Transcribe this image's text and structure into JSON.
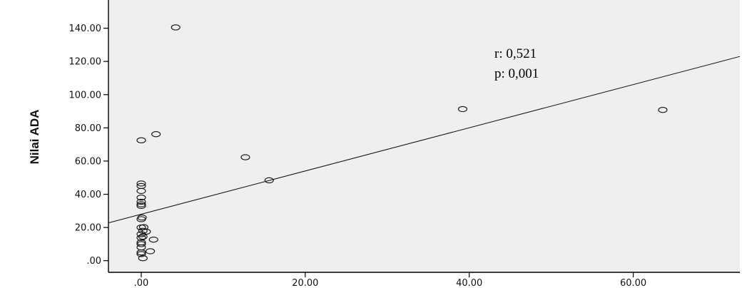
{
  "chart_data": {
    "type": "scatter",
    "title": "",
    "xlabel": "",
    "ylabel": "Nilai ADA",
    "xlim": [
      -4,
      73
    ],
    "ylim": [
      -7,
      157
    ],
    "x_ticks": [
      0,
      20,
      40,
      60
    ],
    "x_tick_labels": [
      ".00",
      "20.00",
      "40.00",
      "60.00"
    ],
    "y_ticks": [
      0,
      20,
      40,
      60,
      80,
      100,
      120,
      140
    ],
    "y_tick_labels": [
      ".00",
      "20.00",
      "40.00",
      "60.00",
      "80.00",
      "100.00",
      "120.00",
      "140.00"
    ],
    "grid": false,
    "plot_background": "#efefef",
    "series": [
      {
        "x": [
          4.2,
          1.8,
          0.0,
          12.7,
          15.6,
          39.2,
          63.6,
          0.0,
          0.0,
          0.0,
          0.0,
          0.0,
          0.0,
          0.0,
          0.0,
          0.1,
          0.0,
          0.3,
          0.2,
          0.0,
          0.6,
          1.5,
          0.0,
          0.2,
          0.0,
          0.0,
          0.0,
          1.1,
          0.0,
          0.0,
          0.2
        ],
        "y": [
          140.5,
          76.2,
          72.5,
          62.3,
          48.4,
          91.3,
          90.8,
          46.5,
          45.0,
          42.0,
          38.0,
          35.5,
          34.0,
          33.0,
          25.0,
          26.0,
          20.0,
          20.2,
          18.0,
          16.0,
          17.5,
          12.7,
          13.8,
          14.5,
          11.0,
          10.0,
          8.0,
          5.7,
          5.0,
          4.0,
          1.5
        ]
      }
    ],
    "fit_line": {
      "x": [
        -4,
        73
      ],
      "y": [
        22.8,
        123.0
      ]
    },
    "annotations": [
      "r: 0,521",
      "p: 0,001"
    ]
  }
}
